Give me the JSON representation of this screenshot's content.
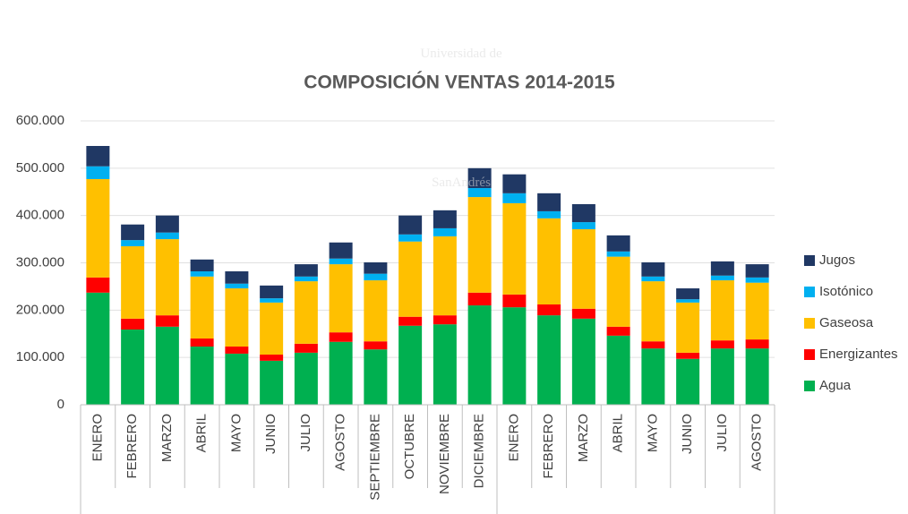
{
  "chart_data": {
    "type": "stacked_bar",
    "title": "COMPOSICIÓN VENTAS 2014-2015",
    "watermark": [
      "Universidad de",
      "SanAndrés"
    ],
    "categories": [
      "ENERO",
      "FEBRERO",
      "MARZO",
      "ABRIL",
      "MAYO",
      "JUNIO",
      "JULIO",
      "AGOSTO",
      "SEPTIEMBRE",
      "OCTUBRE",
      "NOVIEMBRE",
      "DICIEMBRE",
      "ENERO",
      "FEBRERO",
      "MARZO",
      "ABRIL",
      "MAYO",
      "JUNIO",
      "JULIO",
      "AGOSTO"
    ],
    "series": [
      {
        "name": "Agua",
        "color": "#00b050",
        "values": [
          237000,
          159000,
          165000,
          123000,
          108000,
          93000,
          110000,
          133000,
          117000,
          167000,
          170000,
          210000,
          206000,
          189000,
          182000,
          146000,
          119000,
          97000,
          119000,
          119000
        ]
      },
      {
        "name": "Energizantes",
        "color": "#ff0000",
        "values": [
          32000,
          23000,
          24000,
          17000,
          15000,
          13000,
          19000,
          20000,
          17000,
          19000,
          19000,
          27000,
          27000,
          23000,
          21000,
          19000,
          15000,
          13000,
          17000,
          19000
        ]
      },
      {
        "name": "Gaseosa",
        "color": "#ffc000",
        "values": [
          208000,
          153000,
          161000,
          131000,
          123000,
          110000,
          132000,
          144000,
          129000,
          159000,
          167000,
          202000,
          193000,
          182000,
          168000,
          148000,
          127000,
          106000,
          127000,
          120000
        ]
      },
      {
        "name": "Isotónico",
        "color": "#00b0f0",
        "values": [
          27000,
          13000,
          14000,
          11000,
          10000,
          9000,
          10000,
          12000,
          14000,
          15000,
          17000,
          19000,
          21000,
          15000,
          15000,
          11000,
          10000,
          7000,
          10000,
          11000
        ]
      },
      {
        "name": "Jugos",
        "color": "#203864",
        "values": [
          43000,
          33000,
          36000,
          25000,
          26000,
          27000,
          26000,
          34000,
          24000,
          40000,
          38000,
          42000,
          40000,
          38000,
          38000,
          34000,
          30000,
          23000,
          30000,
          28000
        ]
      }
    ],
    "ylim": [
      0,
      600000
    ],
    "yticks": [
      0,
      {
        "value": 100000,
        "label": "100.000"
      },
      {
        "value": 200000,
        "label": "200.000"
      },
      {
        "value": 300000,
        "label": "300.000"
      },
      {
        "value": 400000,
        "label": "400.000"
      },
      {
        "value": 500000,
        "label": "500.000"
      },
      {
        "value": 600000,
        "label": "600.000"
      }
    ],
    "grid": true,
    "legend": "right"
  }
}
